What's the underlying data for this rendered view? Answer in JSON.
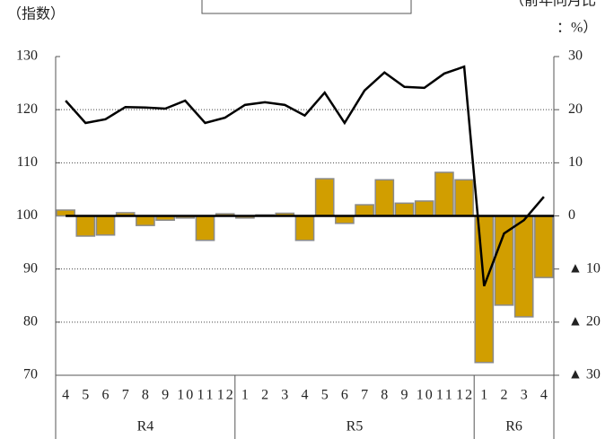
{
  "chart_data": {
    "type": "combo",
    "ylabel": "（指数）",
    "y2label": [
      "（前年同月比",
      "：%）"
    ],
    "categories": [
      "4",
      "5",
      "6",
      "7",
      "8",
      "9",
      "10",
      "11",
      "12",
      "1",
      "2",
      "3",
      "4",
      "5",
      "6",
      "7",
      "8",
      "9",
      "10",
      "11",
      "12",
      "1",
      "2",
      "3",
      "4"
    ],
    "groups": [
      {
        "name": "R4",
        "span": 9
      },
      {
        "name": "R5",
        "span": 12
      },
      {
        "name": "R6",
        "span": 4
      }
    ],
    "series": [
      {
        "type": "bar",
        "axis": "y2",
        "color": "#d19e00",
        "values": [
          1.1,
          -3.8,
          -3.6,
          0.6,
          -1.8,
          -0.8,
          -0.4,
          -4.6,
          0.4,
          -0.4,
          0.2,
          0.5,
          -4.6,
          7.0,
          -1.4,
          2.1,
          6.8,
          2.4,
          2.8,
          8.2,
          6.8,
          -27.6,
          -16.8,
          -19.0,
          -11.6
        ]
      },
      {
        "type": "line",
        "color": "#000000",
        "values": [
          121.7,
          117.5,
          118.2,
          120.5,
          120.4,
          120.2,
          121.7,
          117.5,
          118.5,
          120.9,
          121.4,
          120.9,
          118.9,
          123.2,
          117.5,
          123.6,
          127.0,
          124.3,
          124.1,
          126.8,
          128.1,
          86.8,
          96.7,
          99.2,
          103.6
        ]
      }
    ],
    "ylim": [
      70,
      130
    ],
    "yticks": [
      70,
      80,
      90,
      100,
      110,
      120,
      130
    ],
    "y2lim": [
      -30,
      30
    ],
    "y2ticks": [
      30,
      20,
      10,
      0,
      {
        "value": -10,
        "label": "▲ 10"
      },
      {
        "value": -20,
        "label": "▲ 20"
      },
      {
        "value": -30,
        "label": "▲ 30"
      }
    ],
    "grid": true
  }
}
